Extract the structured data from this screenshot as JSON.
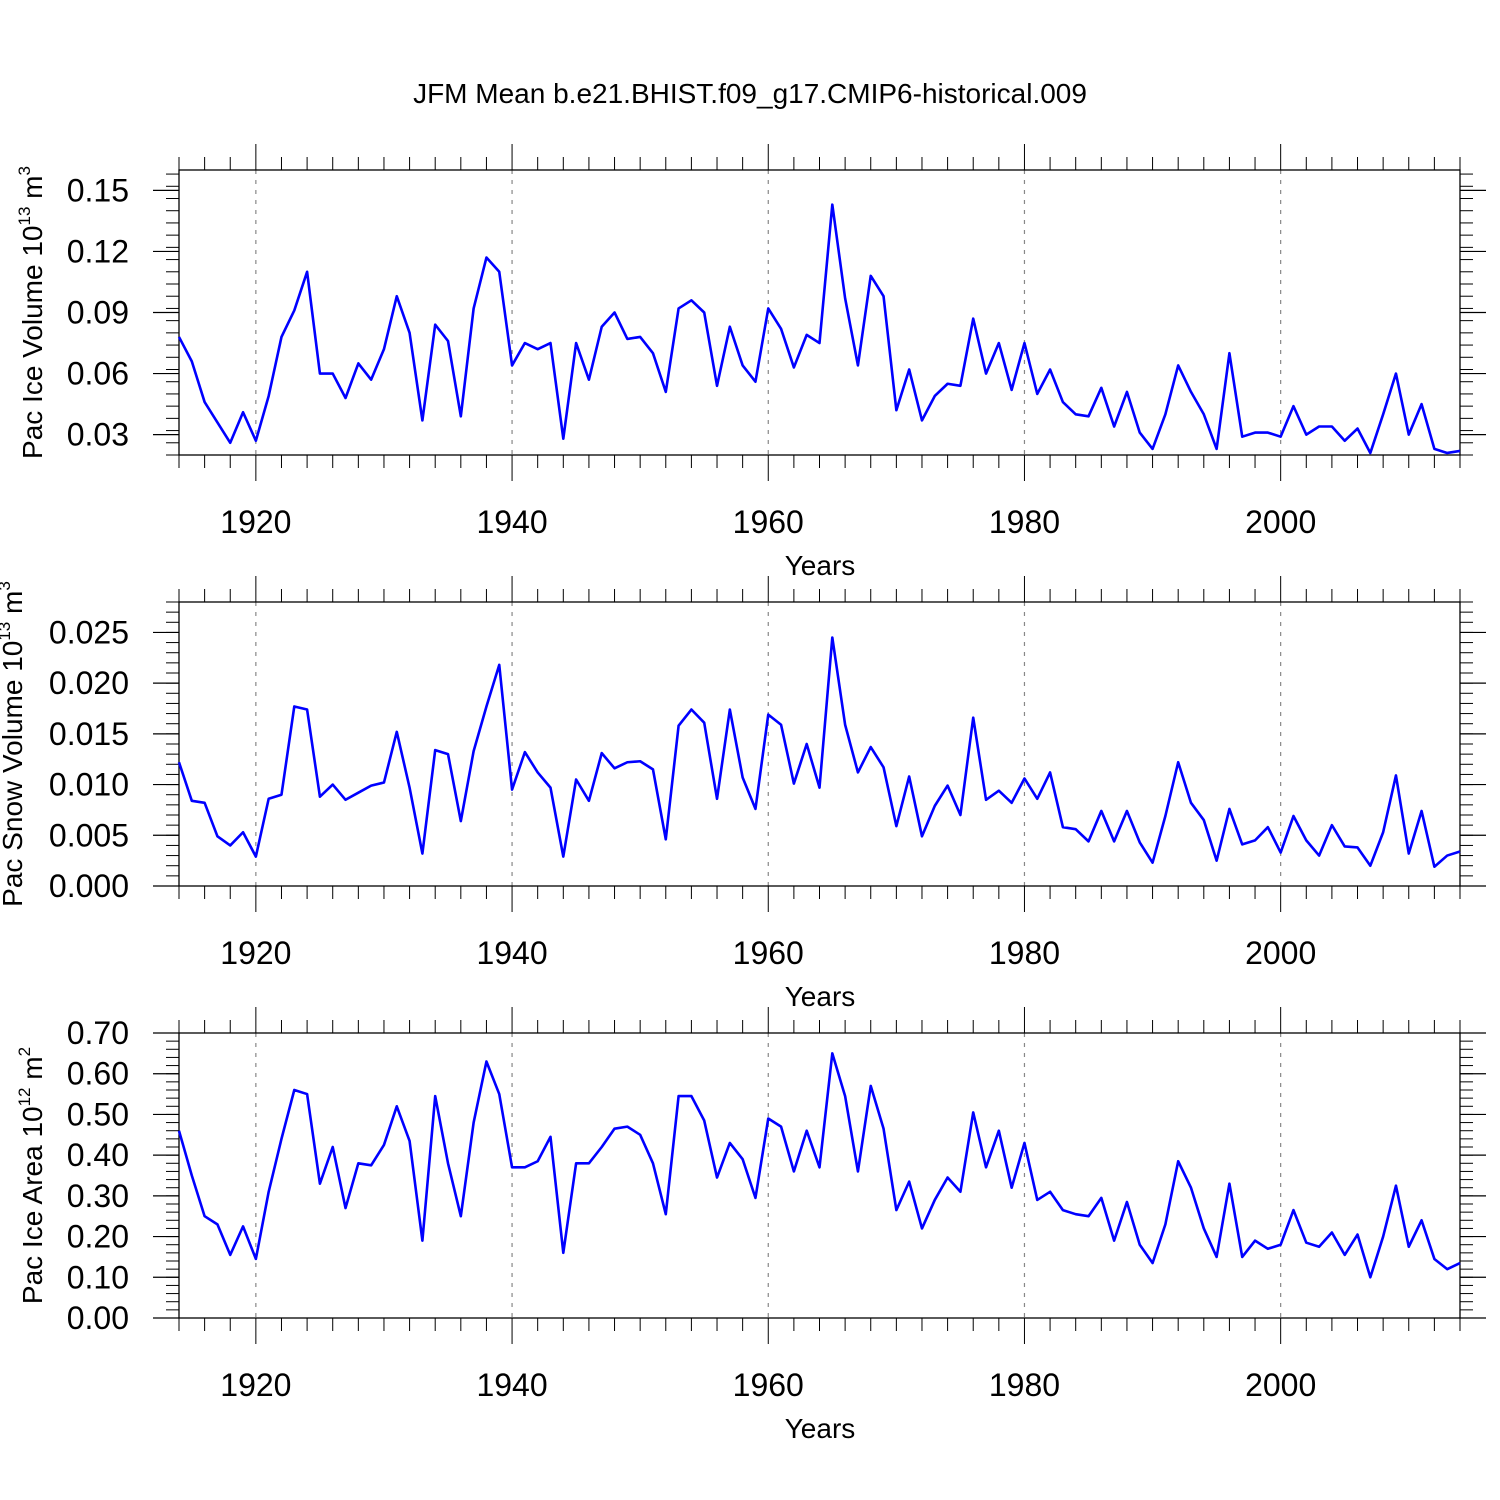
{
  "title": "JFM Mean b.e21.BHIST.f09_g17.CMIP6-historical.009",
  "colors": {
    "line": "#0000ff",
    "axis": "#000000",
    "grid": "#888888"
  },
  "chart_data": [
    {
      "type": "line",
      "ylabel": "Pac Ice Volume 10",
      "ylabel_exponent": "13",
      "ylabel_unit": "m",
      "ylabel_unit_exponent": "3",
      "xlabel": "Years",
      "x_start": 1914,
      "xlim": [
        1914,
        2014
      ],
      "ylim": [
        0.02,
        0.16
      ],
      "x_ticks": [
        1920,
        1940,
        1960,
        1980,
        2000
      ],
      "x_tick_labels": [
        "1920",
        "1940",
        "1960",
        "1980",
        "2000"
      ],
      "y_ticks": [
        0.03,
        0.06,
        0.09,
        0.12,
        0.15
      ],
      "y_tick_labels": [
        "0.03",
        "0.06",
        "0.09",
        "0.12",
        "0.15"
      ],
      "y_minor_step": 0.006,
      "values": [
        0.078,
        0.066,
        0.046,
        0.036,
        0.026,
        0.041,
        0.027,
        0.049,
        0.078,
        0.091,
        0.11,
        0.06,
        0.06,
        0.048,
        0.065,
        0.057,
        0.072,
        0.098,
        0.08,
        0.037,
        0.084,
        0.076,
        0.039,
        0.092,
        0.117,
        0.11,
        0.064,
        0.075,
        0.072,
        0.075,
        0.028,
        0.075,
        0.057,
        0.083,
        0.09,
        0.077,
        0.078,
        0.07,
        0.051,
        0.092,
        0.096,
        0.09,
        0.054,
        0.083,
        0.064,
        0.056,
        0.092,
        0.082,
        0.063,
        0.079,
        0.075,
        0.143,
        0.097,
        0.064,
        0.108,
        0.098,
        0.042,
        0.062,
        0.037,
        0.049,
        0.055,
        0.054,
        0.087,
        0.06,
        0.075,
        0.052,
        0.075,
        0.05,
        0.062,
        0.046,
        0.04,
        0.039,
        0.053,
        0.034,
        0.051,
        0.031,
        0.023,
        0.04,
        0.064,
        0.051,
        0.04,
        0.023,
        0.07,
        0.029,
        0.031,
        0.031,
        0.029,
        0.044,
        0.03,
        0.034,
        0.034,
        0.027,
        0.033,
        0.021,
        0.04,
        0.06,
        0.03,
        0.045,
        0.023,
        0.021,
        0.022
      ]
    },
    {
      "type": "line",
      "ylabel": "Pac Snow Volume 10",
      "ylabel_exponent": "13",
      "ylabel_unit": "m",
      "ylabel_unit_exponent": "3",
      "xlabel": "Years",
      "x_start": 1914,
      "xlim": [
        1914,
        2014
      ],
      "ylim": [
        0.0,
        0.028
      ],
      "x_ticks": [
        1920,
        1940,
        1960,
        1980,
        2000
      ],
      "x_tick_labels": [
        "1920",
        "1940",
        "1960",
        "1980",
        "2000"
      ],
      "y_ticks": [
        0.0,
        0.005,
        0.01,
        0.015,
        0.02,
        0.025
      ],
      "y_tick_labels": [
        "0.000",
        "0.005",
        "0.010",
        "0.015",
        "0.020",
        "0.025"
      ],
      "y_minor_step": 0.001,
      "values": [
        0.0122,
        0.0084,
        0.0082,
        0.0049,
        0.004,
        0.0053,
        0.0029,
        0.0086,
        0.009,
        0.0177,
        0.0174,
        0.0088,
        0.01,
        0.0085,
        0.0092,
        0.0099,
        0.0102,
        0.0152,
        0.0097,
        0.0032,
        0.0134,
        0.013,
        0.0064,
        0.0133,
        0.0177,
        0.0218,
        0.0095,
        0.0132,
        0.0112,
        0.0097,
        0.0029,
        0.0105,
        0.0084,
        0.0131,
        0.0116,
        0.0122,
        0.0123,
        0.0115,
        0.0046,
        0.0158,
        0.0174,
        0.0161,
        0.0086,
        0.0174,
        0.0107,
        0.0076,
        0.0169,
        0.0159,
        0.0101,
        0.014,
        0.0097,
        0.0245,
        0.0159,
        0.0112,
        0.0137,
        0.0117,
        0.0059,
        0.0108,
        0.0049,
        0.0079,
        0.0099,
        0.007,
        0.0166,
        0.0085,
        0.0094,
        0.0082,
        0.0106,
        0.0086,
        0.0112,
        0.0058,
        0.0056,
        0.0044,
        0.0074,
        0.0044,
        0.0074,
        0.0043,
        0.0023,
        0.0069,
        0.0122,
        0.0082,
        0.0065,
        0.0025,
        0.0076,
        0.0041,
        0.0045,
        0.0058,
        0.0033,
        0.0069,
        0.0045,
        0.003,
        0.006,
        0.0039,
        0.0038,
        0.002,
        0.0053,
        0.0109,
        0.0032,
        0.0074,
        0.0019,
        0.003,
        0.0034
      ]
    },
    {
      "type": "line",
      "ylabel": "Pac Ice Area 10",
      "ylabel_exponent": "12",
      "ylabel_unit": "m",
      "ylabel_unit_exponent": "2",
      "xlabel": "Years",
      "x_start": 1914,
      "xlim": [
        1914,
        2014
      ],
      "ylim": [
        0.0,
        0.7
      ],
      "x_ticks": [
        1920,
        1940,
        1960,
        1980,
        2000
      ],
      "x_tick_labels": [
        "1920",
        "1940",
        "1960",
        "1980",
        "2000"
      ],
      "y_ticks": [
        0.0,
        0.1,
        0.2,
        0.3,
        0.4,
        0.5,
        0.6,
        0.7
      ],
      "y_tick_labels": [
        "0.00",
        "0.10",
        "0.20",
        "0.30",
        "0.40",
        "0.50",
        "0.60",
        "0.70"
      ],
      "y_minor_step": 0.02,
      "values": [
        0.46,
        0.35,
        0.25,
        0.23,
        0.155,
        0.225,
        0.145,
        0.31,
        0.44,
        0.56,
        0.55,
        0.33,
        0.42,
        0.27,
        0.38,
        0.375,
        0.425,
        0.52,
        0.435,
        0.19,
        0.545,
        0.38,
        0.25,
        0.48,
        0.63,
        0.55,
        0.37,
        0.37,
        0.385,
        0.445,
        0.16,
        0.38,
        0.38,
        0.42,
        0.465,
        0.47,
        0.45,
        0.38,
        0.255,
        0.545,
        0.545,
        0.485,
        0.345,
        0.43,
        0.39,
        0.295,
        0.49,
        0.47,
        0.36,
        0.46,
        0.37,
        0.65,
        0.545,
        0.36,
        0.57,
        0.465,
        0.265,
        0.335,
        0.22,
        0.29,
        0.345,
        0.31,
        0.505,
        0.37,
        0.46,
        0.32,
        0.43,
        0.29,
        0.31,
        0.265,
        0.255,
        0.25,
        0.295,
        0.19,
        0.285,
        0.18,
        0.135,
        0.23,
        0.385,
        0.32,
        0.22,
        0.15,
        0.33,
        0.15,
        0.19,
        0.17,
        0.18,
        0.265,
        0.185,
        0.175,
        0.21,
        0.155,
        0.205,
        0.1,
        0.2,
        0.325,
        0.175,
        0.24,
        0.145,
        0.12,
        0.135
      ]
    }
  ]
}
